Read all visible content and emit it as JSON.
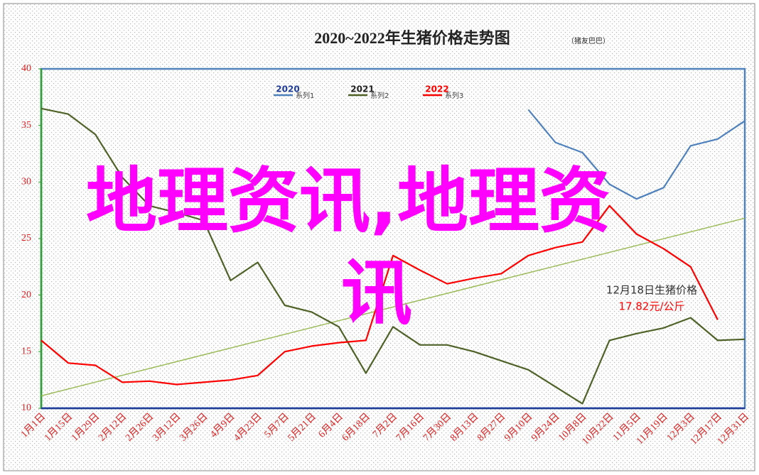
{
  "chart_data": {
    "type": "line",
    "title": "2020~2022年生猪价格走势图",
    "subtitle": "（猪友巴巴）",
    "categories": [
      "1月1日",
      "1月15日",
      "1月29日",
      "2月12日",
      "2月26日",
      "3月12日",
      "3月26日",
      "4月9日",
      "4月23日",
      "5月7日",
      "5月21日",
      "6月4日",
      "6月18日",
      "7月2日",
      "7月16日",
      "7月30日",
      "8月13日",
      "8月27日",
      "9月10日",
      "9月24日",
      "10月8日",
      "10月22日",
      "11月5日",
      "11月19日",
      "12月3日",
      "12月17日",
      "12月31日"
    ],
    "series": [
      {
        "name": "系列1",
        "label": "2020",
        "color": "#4f81bd",
        "values": [
          null,
          null,
          null,
          null,
          null,
          null,
          null,
          null,
          null,
          null,
          null,
          null,
          null,
          null,
          null,
          null,
          null,
          null,
          36.4,
          33.5,
          32.6,
          29.8,
          28.5,
          29.5,
          33.2,
          33.8,
          35.4
        ]
      },
      {
        "name": "系列2",
        "label": "2021",
        "color": "#4f6228",
        "values": [
          36.5,
          36.0,
          34.2,
          30.4,
          27.9,
          27.3,
          26.6,
          21.3,
          22.9,
          19.1,
          18.5,
          17.2,
          13.1,
          17.2,
          15.6,
          15.6,
          15.0,
          14.2,
          13.4,
          11.9,
          10.4,
          16.0,
          16.6,
          17.1,
          18.0,
          16.0,
          16.1
        ]
      },
      {
        "name": "系列3",
        "label": "2022",
        "color": "#ff0000",
        "values": [
          16.0,
          14.0,
          13.8,
          12.3,
          12.4,
          12.1,
          12.3,
          12.5,
          12.9,
          15.0,
          15.5,
          15.8,
          16.0,
          23.5,
          22.2,
          21.0,
          21.5,
          21.9,
          23.5,
          24.2,
          24.7,
          27.9,
          25.4,
          24.1,
          22.5,
          17.82,
          null
        ]
      }
    ],
    "trendline": {
      "start": 11.1,
      "end": 26.8,
      "color": "#9bbb59"
    },
    "ylim": [
      10,
      40
    ],
    "yticks": [
      10,
      15,
      20,
      25,
      30,
      35,
      40
    ],
    "annotation": {
      "title": "12月18日生猪价格",
      "value": "17.82元/公斤"
    },
    "watermark": [
      "地理资讯,地理资",
      "讯"
    ]
  }
}
